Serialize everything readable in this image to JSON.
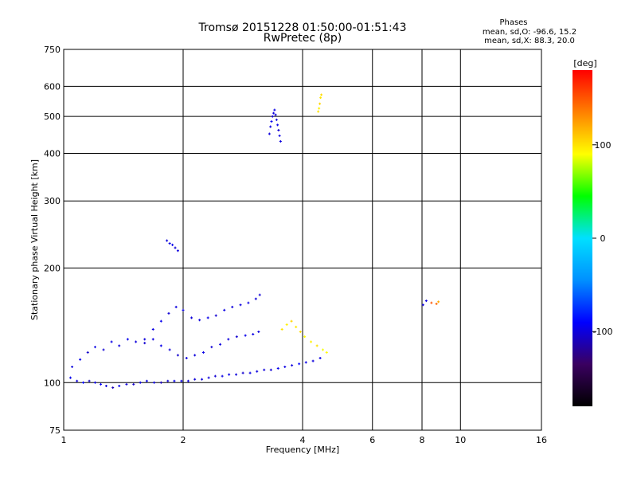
{
  "header": {
    "title_line1": "Tromsø 20151228 01:50:00-01:51:43",
    "title_line2": "RwPretec (8p)",
    "stats_title": "Phases",
    "stats_line1": "mean, sd,O: -96.6, 15.2",
    "stats_line2": "mean, sd,X:  88.3, 20.0"
  },
  "colorbar": {
    "label": "[deg]",
    "tick_labels": [
      "100",
      "0",
      "-100"
    ],
    "colors": [
      "#000000",
      "#3a0060",
      "#0000ff",
      "#0090ff",
      "#00e0ff",
      "#00ff00",
      "#ffff00",
      "#ff8000",
      "#ff0000"
    ]
  },
  "chart_data": {
    "type": "scatter",
    "xlabel": "Frequency [MHz]",
    "ylabel": "Stationary phase Virtual Height [km]",
    "xscale": "log",
    "yscale": "log",
    "xlim": [
      1,
      16
    ],
    "ylim": [
      75,
      750
    ],
    "xticks": [
      1,
      2,
      4,
      6,
      8,
      10,
      16
    ],
    "xtick_labels": [
      "1",
      "2",
      "4",
      "6",
      "8",
      "10",
      "16"
    ],
    "yticks": [
      75,
      100,
      200,
      300,
      400,
      500,
      600,
      750
    ],
    "ytick_labels": [
      "75",
      "100",
      "200",
      "300",
      "400",
      "500",
      "600",
      "750"
    ],
    "grid": true,
    "color_scale": [
      -180,
      180
    ],
    "points_note_removed": true,
    "series": [
      {
        "x": [
          1.04,
          1.08,
          1.12,
          1.16,
          1.2,
          1.24,
          1.28,
          1.33,
          1.38,
          1.44,
          1.5,
          1.56,
          1.62,
          1.69,
          1.76,
          1.83,
          1.9,
          1.98,
          2.06,
          2.14,
          2.23,
          2.32,
          2.41,
          2.51,
          2.61,
          2.72,
          2.83,
          2.95,
          3.07,
          3.2,
          3.33,
          3.47,
          3.61,
          3.76,
          3.92,
          4.08,
          4.25,
          4.43
        ],
        "y": [
          103,
          101,
          100,
          101,
          100,
          99,
          98,
          97,
          98,
          99,
          99,
          100,
          101,
          100,
          100,
          101,
          101,
          101,
          101,
          102,
          102,
          103,
          104,
          104,
          105,
          105,
          106,
          106,
          107,
          108,
          108,
          109,
          110,
          111,
          112,
          113,
          114,
          116
        ],
        "phase": [
          -95,
          -100,
          -90,
          -105,
          -98,
          -92,
          -100,
          -110,
          -95,
          -100,
          -105,
          -98,
          -96,
          -100,
          -110,
          -102,
          -95,
          -97,
          -100,
          -101,
          -99,
          -100,
          -103,
          -98,
          -96,
          -100,
          -104,
          -97,
          -99,
          -100,
          -102,
          -95,
          -98,
          -100,
          -90,
          -96,
          -100,
          -98
        ]
      },
      {
        "x": [
          1.05,
          1.1,
          1.15,
          1.2,
          1.26,
          1.32,
          1.38,
          1.45,
          1.52,
          1.6,
          1.68,
          1.76,
          1.85,
          1.94,
          2.04,
          2.14,
          2.25,
          2.36,
          2.48,
          2.6,
          2.73,
          2.87,
          3.0,
          3.1
        ],
        "y": [
          110,
          115,
          120,
          124,
          122,
          128,
          125,
          130,
          128,
          127,
          130,
          125,
          122,
          118,
          116,
          118,
          120,
          124,
          126,
          130,
          132,
          133,
          134,
          136
        ],
        "phase": [
          -100,
          -95,
          -105,
          -98,
          -102,
          -97,
          -100,
          -95,
          -100,
          -103,
          -99,
          -96,
          -101,
          -104,
          -98,
          -100,
          -97,
          -102,
          -99,
          -100,
          -103,
          -96,
          -98,
          -100
        ]
      },
      {
        "x": [
          1.6,
          1.68,
          1.76,
          1.84,
          1.92,
          2.0,
          2.1,
          2.2,
          2.31,
          2.42,
          2.54,
          2.66,
          2.79,
          2.92,
          3.05,
          3.12
        ],
        "y": [
          130,
          138,
          145,
          152,
          158,
          155,
          148,
          146,
          148,
          150,
          155,
          158,
          160,
          162,
          166,
          170
        ],
        "phase": [
          -100,
          -98,
          -95,
          -102,
          -99,
          -97,
          -101,
          -100,
          -96,
          -103,
          -98,
          -100,
          -99,
          -97,
          -100,
          -102
        ]
      },
      {
        "x": [
          3.3,
          3.32,
          3.34,
          3.36,
          3.38,
          3.4,
          3.42,
          3.44,
          3.46,
          3.48,
          3.5,
          3.52
        ],
        "y": [
          450,
          470,
          485,
          500,
          510,
          520,
          505,
          490,
          475,
          460,
          445,
          430
        ],
        "phase": [
          -100,
          -98,
          -95,
          -102,
          -99,
          -97,
          -101,
          -100,
          -96,
          -103,
          -98,
          -100
        ]
      },
      {
        "x": [
          3.55,
          3.65,
          3.75,
          3.85,
          3.95,
          4.05,
          4.2,
          4.35,
          4.5,
          4.6
        ],
        "y": [
          138,
          142,
          145,
          140,
          136,
          132,
          128,
          125,
          122,
          120
        ],
        "phase": [
          100,
          95,
          105,
          98,
          102,
          90,
          95,
          100,
          88,
          92
        ]
      },
      {
        "x": [
          1.82,
          1.85,
          1.88,
          1.91,
          1.94
        ],
        "y": [
          236,
          232,
          230,
          226,
          222
        ],
        "phase": [
          -100,
          -98,
          -95,
          -102,
          -99
        ]
      },
      {
        "x": [
          4.38,
          4.4,
          4.42,
          4.44,
          4.46
        ],
        "y": [
          515,
          525,
          540,
          560,
          570
        ],
        "phase": [
          100,
          95,
          105,
          98,
          102
        ]
      },
      {
        "x": [
          8.05,
          8.2,
          8.45,
          8.7,
          8.8
        ],
        "y": [
          160,
          164,
          162,
          161,
          163
        ],
        "phase": [
          -100,
          -98,
          150,
          145,
          120
        ]
      }
    ]
  }
}
